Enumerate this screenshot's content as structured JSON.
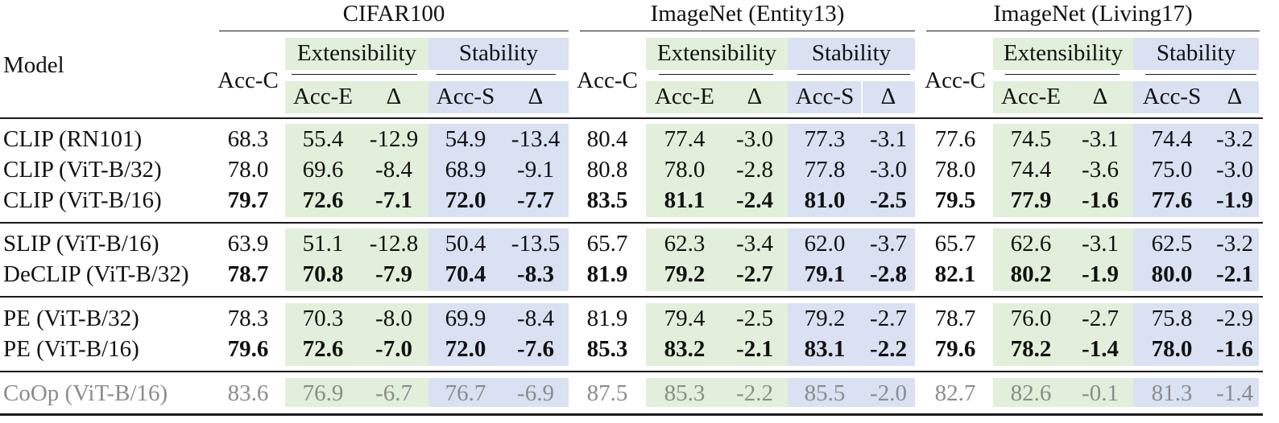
{
  "table": {
    "model_header": "Model",
    "datasets": [
      {
        "name": "CIFAR100",
        "acc_c": "Acc-C",
        "ext": "Extensibility",
        "stab": "Stability",
        "acc_e": "Acc-E",
        "delta_e": "Δ",
        "acc_s": "Acc-S",
        "delta_s": "Δ"
      },
      {
        "name": "ImageNet (Entity13)",
        "acc_c": "Acc-C",
        "ext": "Extensibility",
        "stab": "Stability",
        "acc_e": "Acc-E",
        "delta_e": "Δ",
        "acc_s": "Acc-S",
        "delta_s": "Δ"
      },
      {
        "name": "ImageNet (Living17)",
        "acc_c": "Acc-C",
        "ext": "Extensibility",
        "stab": "Stability",
        "acc_e": "Acc-E",
        "delta_e": "Δ",
        "acc_s": "Acc-S",
        "delta_s": "Δ"
      }
    ],
    "rows": [
      {
        "model": "CLIP (RN101)",
        "bold": false,
        "gray": false,
        "vals": [
          "68.3",
          "55.4",
          "-12.9",
          "54.9",
          "-13.4",
          "80.4",
          "77.4",
          "-3.0",
          "77.3",
          "-3.1",
          "77.6",
          "74.5",
          "-3.1",
          "74.4",
          "-3.2"
        ]
      },
      {
        "model": "CLIP (ViT-B/32)",
        "bold": false,
        "gray": false,
        "vals": [
          "78.0",
          "69.6",
          "-8.4",
          "68.9",
          "-9.1",
          "80.8",
          "78.0",
          "-2.8",
          "77.8",
          "-3.0",
          "78.0",
          "74.4",
          "-3.6",
          "75.0",
          "-3.0"
        ]
      },
      {
        "model": "CLIP (ViT-B/16)",
        "bold": true,
        "gray": false,
        "vals": [
          "79.7",
          "72.6",
          "-7.1",
          "72.0",
          "-7.7",
          "83.5",
          "81.1",
          "-2.4",
          "81.0",
          "-2.5",
          "79.5",
          "77.9",
          "-1.6",
          "77.6",
          "-1.9"
        ]
      },
      {
        "model": "SLIP (ViT-B/16)",
        "bold": false,
        "gray": false,
        "vals": [
          "63.9",
          "51.1",
          "-12.8",
          "50.4",
          "-13.5",
          "65.7",
          "62.3",
          "-3.4",
          "62.0",
          "-3.7",
          "65.7",
          "62.6",
          "-3.1",
          "62.5",
          "-3.2"
        ]
      },
      {
        "model": "DeCLIP (ViT-B/32)",
        "bold": true,
        "gray": false,
        "vals": [
          "78.7",
          "70.8",
          "-7.9",
          "70.4",
          "-8.3",
          "81.9",
          "79.2",
          "-2.7",
          "79.1",
          "-2.8",
          "82.1",
          "80.2",
          "-1.9",
          "80.0",
          "-2.1"
        ]
      },
      {
        "model": "PE (ViT-B/32)",
        "bold": false,
        "gray": false,
        "vals": [
          "78.3",
          "70.3",
          "-8.0",
          "69.9",
          "-8.4",
          "81.9",
          "79.4",
          "-2.5",
          "79.2",
          "-2.7",
          "78.7",
          "76.0",
          "-2.7",
          "75.8",
          "-2.9"
        ]
      },
      {
        "model": "PE (ViT-B/16)",
        "bold": true,
        "gray": false,
        "vals": [
          "79.6",
          "72.6",
          "-7.0",
          "72.0",
          "-7.6",
          "85.3",
          "83.2",
          "-2.1",
          "83.1",
          "-2.2",
          "79.6",
          "78.2",
          "-1.4",
          "78.0",
          "-1.6"
        ]
      },
      {
        "model": "CoOp (ViT-B/16)",
        "bold": false,
        "gray": true,
        "vals": [
          "83.6",
          "76.9",
          "-6.7",
          "76.7",
          "-6.9",
          "87.5",
          "85.3",
          "-2.2",
          "85.5",
          "-2.0",
          "82.7",
          "82.6",
          "-0.1",
          "81.3",
          "-1.4"
        ]
      }
    ],
    "colors": {
      "extensibility_bg": "#e2efda",
      "stability_bg": "#d9e1f2",
      "baseline_text": "#8c8c8c"
    }
  }
}
